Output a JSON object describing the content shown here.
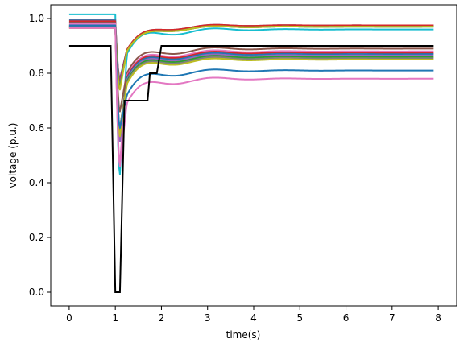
{
  "chart_data": {
    "type": "line",
    "title": "",
    "xlabel": "time(s)",
    "ylabel": "voltage (p.u.)",
    "xlim": [
      -0.4,
      8.4
    ],
    "ylim": [
      -0.05,
      1.05
    ],
    "xticks": [
      0,
      1,
      2,
      3,
      4,
      5,
      6,
      7,
      8
    ],
    "xtick_labels": [
      "0",
      "1",
      "2",
      "3",
      "4",
      "5",
      "6",
      "7",
      "8"
    ],
    "yticks": [
      0.0,
      0.2,
      0.4,
      0.6,
      0.8,
      1.0
    ],
    "ytick_labels": [
      "0.0",
      "0.2",
      "0.4",
      "0.6",
      "0.8",
      "1.0"
    ],
    "grid": false,
    "reference_line": {
      "color": "#000000",
      "x": [
        0,
        0.9,
        1.0,
        1.1,
        1.2,
        1.7,
        1.75,
        1.9,
        2.0,
        7.9
      ],
      "y": [
        0.9,
        0.9,
        0.0,
        0.0,
        0.7,
        0.7,
        0.8,
        0.8,
        0.9,
        0.9
      ]
    },
    "series": [
      {
        "color": "#17becf",
        "pre": 1.015,
        "dip": 0.43,
        "post": 0.96,
        "overshoot": 0.03
      },
      {
        "color": "#4c6fa3",
        "pre": 0.995,
        "dip": 0.78,
        "post": 0.975,
        "overshoot": 0.02
      },
      {
        "color": "#d62728",
        "pre": 0.99,
        "dip": 0.77,
        "post": 0.975,
        "overshoot": 0.02
      },
      {
        "color": "#9467bd",
        "pre": 0.985,
        "dip": 0.76,
        "post": 0.97,
        "overshoot": 0.02
      },
      {
        "color": "#2ca02c",
        "pre": 0.975,
        "dip": 0.75,
        "post": 0.97,
        "overshoot": 0.02
      },
      {
        "color": "#bcbd22",
        "pre": 0.965,
        "dip": 0.74,
        "post": 0.97,
        "overshoot": 0.02
      },
      {
        "color": "#8c564b",
        "pre": 0.985,
        "dip": 0.66,
        "post": 0.89,
        "overshoot": 0.03
      },
      {
        "color": "#e377c2",
        "pre": 0.98,
        "dip": 0.47,
        "post": 0.88,
        "overshoot": 0.03
      },
      {
        "color": "#d62728",
        "pre": 0.975,
        "dip": 0.58,
        "post": 0.875,
        "overshoot": 0.03
      },
      {
        "color": "#1f77b4",
        "pre": 0.975,
        "dip": 0.55,
        "post": 0.87,
        "overshoot": 0.03
      },
      {
        "color": "#9467bd",
        "pre": 0.97,
        "dip": 0.55,
        "post": 0.865,
        "overshoot": 0.03
      },
      {
        "color": "#2ca02c",
        "pre": 0.97,
        "dip": 0.6,
        "post": 0.86,
        "overshoot": 0.03
      },
      {
        "color": "#7f7f7f",
        "pre": 0.97,
        "dip": 0.6,
        "post": 0.855,
        "overshoot": 0.03
      },
      {
        "color": "#bcbd22",
        "pre": 0.965,
        "dip": 0.57,
        "post": 0.85,
        "overshoot": 0.03
      },
      {
        "color": "#1f77b4",
        "pre": 0.97,
        "dip": 0.6,
        "post": 0.81,
        "overshoot": 0.03
      },
      {
        "color": "#e377c2",
        "pre": 0.965,
        "dip": 0.46,
        "post": 0.78,
        "overshoot": 0.03
      }
    ]
  }
}
